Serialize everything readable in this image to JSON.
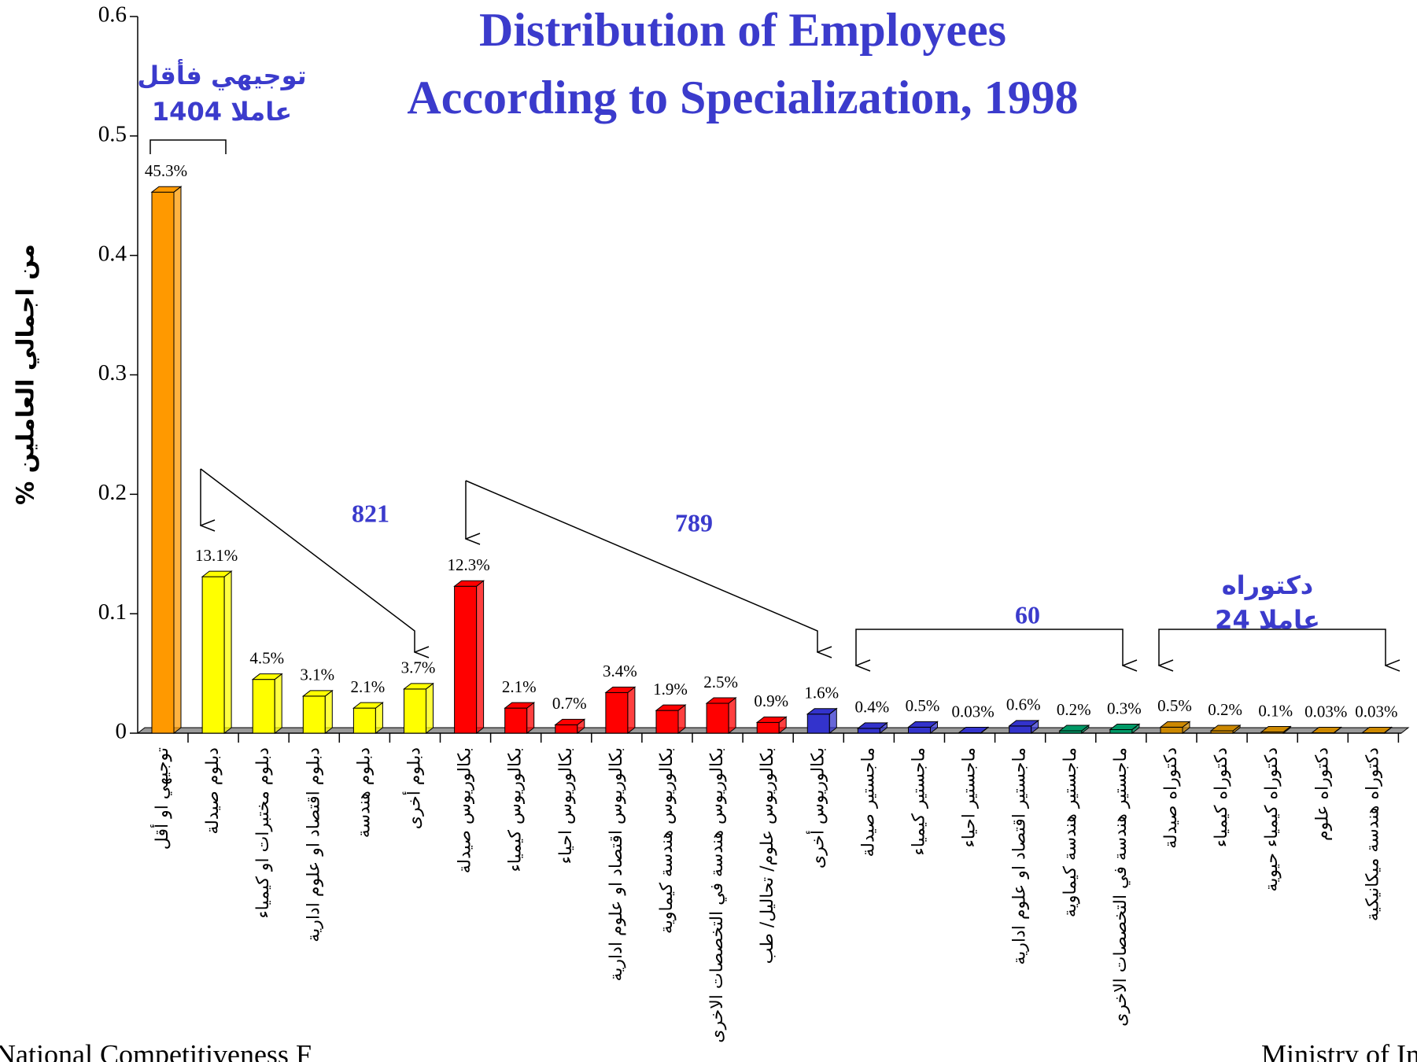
{
  "chart_data": {
    "type": "bar",
    "title": [
      "Distribution of Employees",
      "According to Specialization, 1998"
    ],
    "y_label": "% من اجمالي العاملين",
    "categories": [
      "توجيهي او أقل",
      "دبلوم صيدلة",
      "دبلوم مختبرات او كيمياء",
      "دبلوم اقتصاد او علوم ادارية",
      "دبلوم هندسة",
      "دبلوم أخرى",
      "بكالوريوس صيدلة",
      "بكالوريوس كيمياء",
      "بكالوريوس احياء",
      "بكالوريوس اقتصاد او علوم ادارية",
      "بكالوريوس هندسة كيماوية",
      "بكالوريوس هندسة في التخصصات الاخرى",
      "بكالوريوس علوم/ تحاليل/ طب",
      "بكالوريوس أخرى",
      "ماجستير صيدلة",
      "ماجستير كيمياء",
      "ماجستير احياء",
      "ماجستير اقتصاد او علوم ادارية",
      "ماجستير هندسة كيماوية",
      "ماجستير هندسة في التخصصات الاخرى",
      "دكتوراه صيدلة",
      "دكتوراه كيمياء",
      "دكتوراه كيمياء حيوية",
      "دكتوراه علوم",
      "دكتوراه هندسة ميكانيكية"
    ],
    "values": [
      0.453,
      0.131,
      0.045,
      0.031,
      0.021,
      0.037,
      0.123,
      0.021,
      0.007,
      0.034,
      0.019,
      0.025,
      0.009,
      0.016,
      0.004,
      0.005,
      0.0003,
      0.006,
      0.002,
      0.003,
      0.005,
      0.002,
      0.001,
      0.0003,
      0.0003
    ],
    "value_labels": [
      "45.3%",
      "13.1%",
      "4.5%",
      "3.1%",
      "2.1%",
      "3.7%",
      "12.3%",
      "2.1%",
      "0.7%",
      "3.4%",
      "1.9%",
      "2.5%",
      "0.9%",
      "1.6%",
      "0.4%",
      "0.5%",
      "0.03%",
      "0.6%",
      "0.2%",
      "0.3%",
      "0.5%",
      "0.2%",
      "0.1%",
      "0.03%",
      "0.03%"
    ],
    "colors": [
      "#ff9900",
      "#ffff00",
      "#ffff00",
      "#ffff00",
      "#ffff00",
      "#ffff00",
      "#ff0000",
      "#ff0000",
      "#ff0000",
      "#ff0000",
      "#ff0000",
      "#ff0000",
      "#ff0000",
      "#3333cc",
      "#3333cc",
      "#3333cc",
      "#3333cc",
      "#3333cc",
      "#009966",
      "#009966",
      "#cc8800",
      "#cc8800",
      "#cc8800",
      "#cc8800",
      "#cc8800"
    ],
    "ylim": [
      0,
      0.6
    ],
    "yticks": [
      0,
      0.1,
      0.2,
      0.3,
      0.4,
      0.5,
      0.6
    ],
    "annotations": [
      "توجيهي فأقل",
      "1404 عاملا",
      "821",
      "789",
      "60",
      "دكتوراه",
      "24  عاملا"
    ],
    "footer": [
      "National Competitiveness F",
      "Ministry of In"
    ]
  }
}
